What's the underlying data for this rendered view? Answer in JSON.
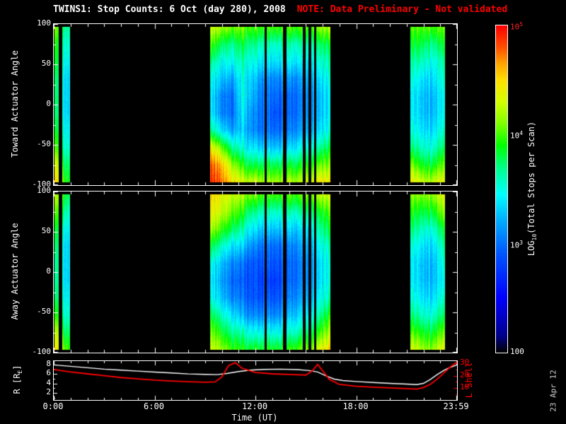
{
  "header": {
    "title": "TWINS1: Stop Counts:  6 Oct (day 280), 2008",
    "note": "NOTE: Data Preliminary - Not validated",
    "note_color": "#ff0000"
  },
  "timestamp": "23 Apr 12",
  "colors": {
    "background": "#000000",
    "frame": "#ffffff",
    "accent_red": "#ff0000"
  },
  "axes": {
    "xlabel": "Time (UT)",
    "xticks": [
      {
        "label": "0:00",
        "h": 0
      },
      {
        "label": "6:00",
        "h": 6
      },
      {
        "label": "12:00",
        "h": 12
      },
      {
        "label": "18:00",
        "h": 18
      },
      {
        "label": "23:59",
        "h": 23.983
      }
    ]
  },
  "bottom_axis": {
    "r_label_pre": "R [R",
    "r_label_sub": "E",
    "r_label_post": "]",
    "l_label": "L Shell"
  },
  "colorbar": {
    "label_pre": "LOG",
    "label_sub": "10",
    "label_post": "(Total Stops per Scan)",
    "vlim": [
      2,
      5
    ],
    "ticks": [
      {
        "base": "10",
        "exp": "5",
        "frac": 1.0,
        "color": "#ff2222"
      },
      {
        "base": "10",
        "exp": "4",
        "frac": 0.6667,
        "color": "#ffffff"
      },
      {
        "base": "10",
        "exp": "3",
        "frac": 0.3333,
        "color": "#ffffff"
      },
      {
        "base": "100",
        "exp": "",
        "frac": 0.0,
        "color": "#ffffff"
      }
    ],
    "colormap": [
      {
        "v": 2.0,
        "c": "#000000"
      },
      {
        "v": 2.15,
        "c": "#00008b"
      },
      {
        "v": 2.5,
        "c": "#0000ff"
      },
      {
        "v": 2.9,
        "c": "#0055ff"
      },
      {
        "v": 3.2,
        "c": "#00aaff"
      },
      {
        "v": 3.45,
        "c": "#00ffff"
      },
      {
        "v": 3.7,
        "c": "#00ff88"
      },
      {
        "v": 3.9,
        "c": "#00ff00"
      },
      {
        "v": 4.1,
        "c": "#80ff00"
      },
      {
        "v": 4.3,
        "c": "#d4ff00"
      },
      {
        "v": 4.5,
        "c": "#ffe000"
      },
      {
        "v": 4.65,
        "c": "#ffa500"
      },
      {
        "v": 4.8,
        "c": "#ff5000"
      },
      {
        "v": 5.0,
        "c": "#ff0000"
      }
    ]
  },
  "chart_data": [
    {
      "type": "heatmap",
      "name": "toward-stop-counts",
      "ylabel": "Toward Actuator Angle",
      "ylim": [
        -100,
        100
      ],
      "yticks": [
        100,
        50,
        0,
        -50,
        -100
      ],
      "x_hours": [
        0,
        24
      ],
      "vlim": [
        2,
        5
      ],
      "value_units": "log10 total stops per scan",
      "segments": [
        {
          "t0": 0.05,
          "t1": 0.95,
          "grid": [
            [
              4.2,
              3.8,
              3.7,
              3.7
            ],
            [
              4.0,
              3.6,
              3.6,
              3.6
            ],
            [
              3.9,
              3.6,
              3.5,
              3.5
            ],
            [
              3.8,
              3.5,
              3.4,
              3.4
            ],
            [
              3.8,
              3.5,
              3.4,
              3.4
            ],
            [
              3.8,
              3.5,
              3.4,
              3.4
            ],
            [
              3.9,
              3.6,
              3.5,
              3.5
            ],
            [
              4.1,
              3.7,
              3.6,
              3.6
            ],
            [
              4.4,
              4.0,
              3.8,
              3.8
            ],
            [
              4.6,
              4.2,
              4.0,
              3.9
            ]
          ]
        },
        {
          "t0": 9.3,
          "t1": 16.45,
          "grid": [
            [
              4.3,
              4.2,
              4.1,
              4.1,
              4.0,
              4.0,
              4.0,
              4.0,
              4.0,
              4.0,
              4.1,
              4.2
            ],
            [
              4.0,
              3.8,
              3.7,
              3.8,
              3.7,
              3.6,
              3.6,
              3.6,
              3.6,
              3.6,
              3.7,
              3.8
            ],
            [
              3.7,
              3.5,
              3.5,
              3.6,
              3.5,
              3.4,
              3.4,
              3.4,
              3.4,
              3.4,
              3.5,
              3.6
            ],
            [
              3.5,
              3.3,
              3.2,
              3.5,
              3.3,
              3.1,
              3.1,
              3.1,
              3.1,
              3.2,
              3.3,
              3.5
            ],
            [
              3.4,
              3.1,
              3.0,
              3.5,
              3.2,
              3.0,
              3.0,
              2.9,
              3.0,
              3.1,
              3.2,
              3.4
            ],
            [
              3.4,
              3.1,
              3.0,
              3.4,
              3.1,
              3.0,
              2.9,
              2.9,
              3.0,
              3.1,
              3.2,
              3.4
            ],
            [
              3.7,
              3.4,
              3.2,
              3.3,
              3.1,
              3.0,
              3.0,
              3.0,
              3.1,
              3.2,
              3.3,
              3.5
            ],
            [
              4.4,
              4.1,
              3.7,
              3.5,
              3.4,
              3.3,
              3.3,
              3.3,
              3.4,
              3.5,
              3.6,
              3.8
            ],
            [
              4.8,
              4.6,
              4.2,
              3.9,
              3.8,
              3.8,
              3.8,
              3.8,
              3.8,
              3.9,
              4.0,
              4.1
            ],
            [
              4.9,
              4.8,
              4.5,
              4.3,
              4.3,
              4.2,
              4.2,
              4.2,
              4.2,
              4.3,
              4.4,
              4.4
            ]
          ]
        },
        {
          "t0": 21.2,
          "t1": 23.3,
          "grid": [
            [
              4.1,
              4.0,
              4.0,
              4.0,
              4.1
            ],
            [
              3.9,
              3.8,
              3.7,
              3.7,
              3.9
            ],
            [
              3.7,
              3.6,
              3.5,
              3.5,
              3.7
            ],
            [
              3.6,
              3.4,
              3.3,
              3.4,
              3.6
            ],
            [
              3.5,
              3.3,
              3.2,
              3.3,
              3.5
            ],
            [
              3.5,
              3.3,
              3.2,
              3.3,
              3.5
            ],
            [
              3.6,
              3.4,
              3.3,
              3.4,
              3.6
            ],
            [
              3.8,
              3.6,
              3.5,
              3.6,
              3.8
            ],
            [
              4.2,
              3.9,
              3.8,
              3.9,
              4.1
            ],
            [
              4.5,
              4.3,
              4.2,
              4.3,
              4.4
            ]
          ]
        }
      ],
      "gaps": [
        {
          "t": 0.38,
          "w": 0.2
        },
        {
          "t": 12.62,
          "w": 0.14
        },
        {
          "t": 13.75,
          "w": 0.2
        },
        {
          "t": 14.9,
          "w": 0.15
        },
        {
          "t": 15.22,
          "w": 0.15
        },
        {
          "t": 15.55,
          "w": 0.12
        }
      ]
    },
    {
      "type": "heatmap",
      "name": "away-stop-counts",
      "ylabel": "Away Actuator Angle",
      "ylim": [
        -100,
        100
      ],
      "yticks": [
        100,
        50,
        0,
        -50,
        -100
      ],
      "x_hours": [
        0,
        24
      ],
      "vlim": [
        2,
        5
      ],
      "value_units": "log10 total stops per scan",
      "segments": [
        {
          "t0": 0.05,
          "t1": 0.95,
          "grid": [
            [
              4.3,
              4.0,
              3.9,
              3.8
            ],
            [
              4.1,
              3.8,
              3.7,
              3.6
            ],
            [
              3.9,
              3.6,
              3.5,
              3.5
            ],
            [
              3.8,
              3.5,
              3.4,
              3.4
            ],
            [
              3.7,
              3.5,
              3.4,
              3.4
            ],
            [
              3.7,
              3.5,
              3.4,
              3.4
            ],
            [
              3.8,
              3.5,
              3.5,
              3.5
            ],
            [
              4.0,
              3.7,
              3.6,
              3.6
            ],
            [
              4.3,
              4.0,
              3.8,
              3.8
            ],
            [
              4.5,
              4.2,
              4.1,
              4.0
            ]
          ]
        },
        {
          "t0": 9.3,
          "t1": 16.45,
          "grid": [
            [
              4.5,
              4.4,
              4.3,
              4.2,
              4.1,
              4.0,
              4.0,
              4.0,
              4.0,
              4.1,
              4.2,
              4.3
            ],
            [
              4.4,
              4.3,
              4.1,
              3.9,
              3.7,
              3.6,
              3.6,
              3.6,
              3.6,
              3.7,
              3.8,
              4.0
            ],
            [
              4.2,
              4.0,
              3.8,
              3.6,
              3.4,
              3.3,
              3.3,
              3.3,
              3.3,
              3.4,
              3.6,
              3.8
            ],
            [
              3.8,
              3.6,
              3.4,
              3.3,
              3.1,
              3.0,
              3.0,
              3.0,
              3.1,
              3.2,
              3.4,
              3.6
            ],
            [
              3.5,
              3.3,
              3.1,
              3.0,
              2.9,
              2.9,
              2.9,
              2.9,
              3.0,
              3.1,
              3.3,
              3.5
            ],
            [
              3.4,
              3.2,
              3.0,
              2.9,
              2.9,
              2.8,
              2.8,
              2.9,
              3.0,
              3.1,
              3.3,
              3.5
            ],
            [
              3.5,
              3.3,
              3.1,
              3.0,
              2.9,
              2.9,
              2.9,
              3.0,
              3.1,
              3.2,
              3.4,
              3.6
            ],
            [
              3.8,
              3.6,
              3.4,
              3.2,
              3.1,
              3.1,
              3.1,
              3.2,
              3.3,
              3.4,
              3.6,
              3.9
            ],
            [
              4.1,
              3.9,
              3.7,
              3.6,
              3.5,
              3.5,
              3.5,
              3.5,
              3.6,
              3.7,
              3.9,
              4.2
            ],
            [
              4.3,
              4.2,
              4.0,
              3.9,
              3.9,
              3.9,
              3.9,
              3.9,
              4.0,
              4.1,
              4.3,
              4.5
            ]
          ]
        },
        {
          "t0": 21.2,
          "t1": 23.3,
          "grid": [
            [
              4.2,
              4.1,
              4.1,
              4.2,
              4.4
            ],
            [
              4.0,
              3.8,
              3.8,
              3.9,
              4.2
            ],
            [
              3.8,
              3.6,
              3.5,
              3.6,
              3.9
            ],
            [
              3.6,
              3.4,
              3.3,
              3.4,
              3.7
            ],
            [
              3.5,
              3.3,
              3.2,
              3.3,
              3.6
            ],
            [
              3.5,
              3.3,
              3.2,
              3.3,
              3.5
            ],
            [
              3.6,
              3.4,
              3.3,
              3.4,
              3.6
            ],
            [
              3.8,
              3.6,
              3.5,
              3.6,
              3.8
            ],
            [
              4.1,
              3.9,
              3.8,
              3.9,
              4.1
            ],
            [
              4.4,
              4.2,
              4.1,
              4.2,
              4.4
            ]
          ]
        }
      ],
      "gaps": [
        {
          "t": 0.38,
          "w": 0.2
        },
        {
          "t": 12.62,
          "w": 0.14
        },
        {
          "t": 13.75,
          "w": 0.2
        },
        {
          "t": 14.9,
          "w": 0.15
        },
        {
          "t": 15.22,
          "w": 0.15
        },
        {
          "t": 15.55,
          "w": 0.12
        }
      ]
    },
    {
      "type": "line",
      "name": "orbit-parameters",
      "xlabel": "Time (UT)",
      "x_hours": [
        0,
        24
      ],
      "series": [
        {
          "name": "R [RE]",
          "color": "#ffffff",
          "axis_side": "left",
          "axis_range": [
            0.5,
            8.7
          ],
          "yticks": [
            8,
            6,
            4,
            2
          ],
          "points": [
            [
              0,
              7.9
            ],
            [
              1,
              7.6
            ],
            [
              2,
              7.3
            ],
            [
              3,
              7.0
            ],
            [
              4,
              6.8
            ],
            [
              5,
              6.6
            ],
            [
              6,
              6.4
            ],
            [
              7,
              6.2
            ],
            [
              8,
              6.0
            ],
            [
              9,
              5.9
            ],
            [
              9.7,
              5.85
            ],
            [
              10.3,
              6.1
            ],
            [
              11,
              6.5
            ],
            [
              11.7,
              6.8
            ],
            [
              12.5,
              6.95
            ],
            [
              13.5,
              7.0
            ],
            [
              14.5,
              6.9
            ],
            [
              15.2,
              6.7
            ],
            [
              15.7,
              6.4
            ],
            [
              16.2,
              5.6
            ],
            [
              16.7,
              4.9
            ],
            [
              17.2,
              4.6
            ],
            [
              18,
              4.4
            ],
            [
              19,
              4.2
            ],
            [
              20,
              4.0
            ],
            [
              21,
              3.85
            ],
            [
              21.6,
              3.75
            ],
            [
              22,
              4.0
            ],
            [
              22.4,
              4.8
            ],
            [
              22.8,
              5.8
            ],
            [
              23.2,
              6.7
            ],
            [
              23.6,
              7.4
            ],
            [
              24,
              7.9
            ]
          ]
        },
        {
          "name": "L Shell",
          "color": "#ff0000",
          "axis_side": "right",
          "axis_range": [
            0.5,
            31.7
          ],
          "yticks": [
            30,
            20,
            10
          ],
          "points": [
            [
              0,
              25
            ],
            [
              1,
              23
            ],
            [
              2,
              21.5
            ],
            [
              3,
              20
            ],
            [
              4,
              18.5
            ],
            [
              5,
              17.5
            ],
            [
              6,
              16.5
            ],
            [
              7,
              15.8
            ],
            [
              8,
              15.2
            ],
            [
              9,
              14.8
            ],
            [
              9.6,
              15
            ],
            [
              10,
              19
            ],
            [
              10.4,
              28
            ],
            [
              10.8,
              30.5
            ],
            [
              11.2,
              26
            ],
            [
              12,
              22.5
            ],
            [
              13,
              21.5
            ],
            [
              14,
              21
            ],
            [
              15,
              20.5
            ],
            [
              15.4,
              24
            ],
            [
              15.7,
              29
            ],
            [
              16,
              24
            ],
            [
              16.4,
              17
            ],
            [
              17,
              13
            ],
            [
              18,
              11.5
            ],
            [
              19,
              10.8
            ],
            [
              20,
              10.2
            ],
            [
              21,
              9.6
            ],
            [
              21.6,
              9.2
            ],
            [
              22,
              10.5
            ],
            [
              22.4,
              13
            ],
            [
              22.8,
              17
            ],
            [
              23.2,
              22
            ],
            [
              23.6,
              27
            ],
            [
              24,
              31
            ]
          ]
        }
      ]
    }
  ]
}
